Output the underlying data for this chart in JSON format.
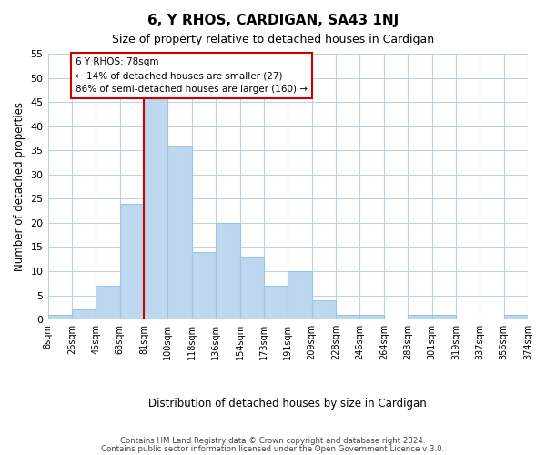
{
  "title": "6, Y RHOS, CARDIGAN, SA43 1NJ",
  "subtitle": "Size of property relative to detached houses in Cardigan",
  "xlabel": "Distribution of detached houses by size in Cardigan",
  "ylabel": "Number of detached properties",
  "bar_color": "#bdd7ee",
  "bar_edge_color": "#9fc4e0",
  "background_color": "#ffffff",
  "grid_color": "#c0d0e8",
  "bin_labels": [
    "8sqm",
    "26sqm",
    "45sqm",
    "63sqm",
    "81sqm",
    "100sqm",
    "118sqm",
    "136sqm",
    "154sqm",
    "173sqm",
    "191sqm",
    "209sqm",
    "228sqm",
    "246sqm",
    "264sqm",
    "283sqm",
    "301sqm",
    "319sqm",
    "337sqm",
    "356sqm",
    "374sqm"
  ],
  "values": [
    1,
    2,
    7,
    24,
    46,
    36,
    14,
    20,
    13,
    7,
    10,
    4,
    1,
    1,
    0,
    1,
    1,
    0,
    0,
    1
  ],
  "marker_label": "6 Y RHOS: 78sqm",
  "annotation_line1": "← 14% of detached houses are smaller (27)",
  "annotation_line2": "86% of semi-detached houses are larger (160) →",
  "ylim": [
    0,
    55
  ],
  "yticks": [
    0,
    5,
    10,
    15,
    20,
    25,
    30,
    35,
    40,
    45,
    50,
    55
  ],
  "footer1": "Contains HM Land Registry data © Crown copyright and database right 2024.",
  "footer2": "Contains public sector information licensed under the Open Government Licence v 3.0.",
  "red_line_color": "#cc0000",
  "annotation_box_color": "#ffffff",
  "annotation_box_edge": "#cc0000"
}
